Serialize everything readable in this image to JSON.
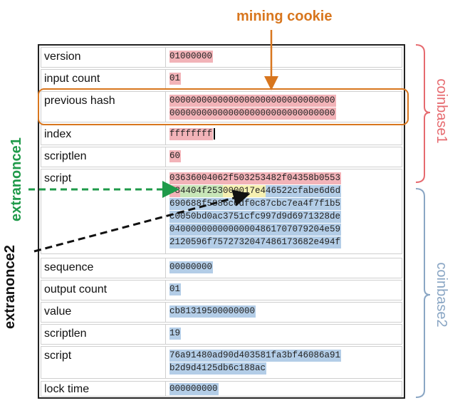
{
  "annotations": {
    "mining_cookie": "mining cookie",
    "extranonce1": "extranonce1",
    "extranonce2": "extranonce2",
    "coinbase1": "coinbase1",
    "coinbase2": "coinbase2"
  },
  "colors": {
    "mining_cookie": "#d8761e",
    "extranonce1": "#1f9a4a",
    "extranonce2": "#111111",
    "coinbase1": "#e66a6f",
    "coinbase2": "#8aa6c4",
    "pink_highlight": "#f2b3b8",
    "blue_highlight": "#b3cde7",
    "green_highlight": "#c8e6b8",
    "yellow_highlight": "#f6f0b2"
  },
  "rows": {
    "version": {
      "label": "version",
      "value": "01000000"
    },
    "input_count": {
      "label": "input count",
      "value": "01"
    },
    "previous_hash": {
      "label": "previous hash",
      "line1": "0000000000000000000000000000000",
      "line2": "0000000000000000000000000000000"
    },
    "index": {
      "label": "index",
      "value": "ffffffff"
    },
    "scriptlen1": {
      "label": "scriptlen",
      "value": "60"
    },
    "script1": {
      "label": "script",
      "line1": "03636004062f503253482f04358b0553",
      "line2_pink": "08",
      "line2_green": "4404f253",
      "line2_yellow": "000017e4",
      "line2_blue": "46522cfabe6d6d",
      "line3": "690688f5886c0df0c87cbc7ea4f7f1b5",
      "line4": "c0050bd0ac3751cfc997d9d6971328de",
      "line5": "04000000000000004861707079204e59",
      "line6": "2120596f7572732047486173682e494f"
    },
    "sequence": {
      "label": "sequence",
      "value": "00000000"
    },
    "output_count": {
      "label": "output count",
      "value": "01"
    },
    "value": {
      "label": "value",
      "value": "cb81319500000000"
    },
    "scriptlen2": {
      "label": "scriptlen",
      "value": "19"
    },
    "script2": {
      "label": "script",
      "line1": "76a91480ad90d403581fa3bf46086a91",
      "line2": "b2d9d4125db6c188ac"
    },
    "lock_time": {
      "label": "lock time",
      "value": "000000000"
    }
  }
}
